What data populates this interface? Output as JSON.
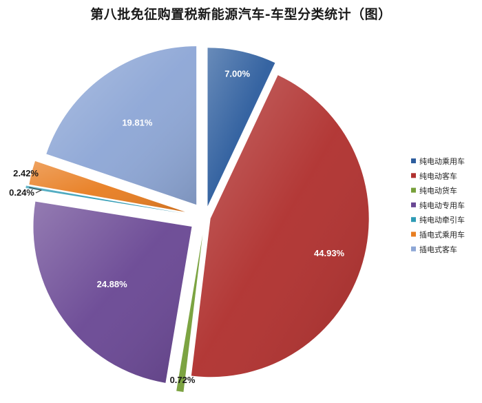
{
  "chart_data": {
    "type": "pie",
    "title": "第八批免征购置税新能源汽车-车型分类统计（图）",
    "legend_position": "right",
    "categories": [
      "纯电动乘用车",
      "纯电动客车",
      "纯电动货车",
      "纯电动专用车",
      "纯电动牵引车",
      "插电式乘用车",
      "插电式客车"
    ],
    "values": [
      7.0,
      44.93,
      0.72,
      24.88,
      0.24,
      2.42,
      19.81
    ],
    "labels": [
      "7.00%",
      "44.93%",
      "0.72%",
      "24.88%",
      "0.24%",
      "2.42%",
      "19.81%"
    ],
    "colors": [
      "#2E5E9E",
      "#B0312F",
      "#77A03A",
      "#6A4894",
      "#2E9BB5",
      "#E87E22",
      "#8EA7D6"
    ],
    "label_colors": [
      "#ffffff",
      "#ffffff",
      "#1a1a1a",
      "#ffffff",
      "#1a1a1a",
      "#1a1a1a",
      "#ffffff"
    ]
  }
}
